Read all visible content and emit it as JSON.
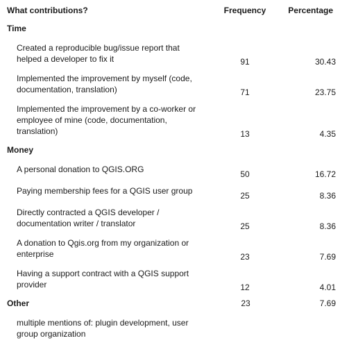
{
  "header": {
    "question": "What contributions?",
    "frequency": "Frequency",
    "percentage": "Percentage"
  },
  "sections": {
    "time": {
      "label": "Time",
      "items": [
        {
          "label": "Created a reproducible bug/issue report that helped a developer to fix it",
          "frequency": "91",
          "percentage": "30.43"
        },
        {
          "label": "Implemented the improvement by myself (code, documentation, translation)",
          "frequency": "71",
          "percentage": "23.75"
        },
        {
          "label": "Implemented the improvement by a co-worker or employee of mine (code, documentation, translation)",
          "frequency": "13",
          "percentage": "4.35"
        }
      ]
    },
    "money": {
      "label": "Money",
      "items": [
        {
          "label": "A personal donation to QGIS.ORG",
          "frequency": "50",
          "percentage": "16.72"
        },
        {
          "label": "Paying membership fees for a QGIS user group",
          "frequency": "25",
          "percentage": "8.36"
        },
        {
          "label": "Directly contracted a QGIS developer / documentation writer / translator",
          "frequency": "25",
          "percentage": "8.36"
        },
        {
          "label": "A donation to Qgis.org from my organization or enterprise",
          "frequency": "23",
          "percentage": "7.69"
        },
        {
          "label": "Having a support contract with a QGIS support provider",
          "frequency": "12",
          "percentage": "4.01"
        }
      ]
    },
    "other": {
      "label": "Other",
      "frequency": "23",
      "percentage": "7.69",
      "items": [
        {
          "label": "multiple mentions of: plugin development, user group organization"
        }
      ]
    }
  }
}
